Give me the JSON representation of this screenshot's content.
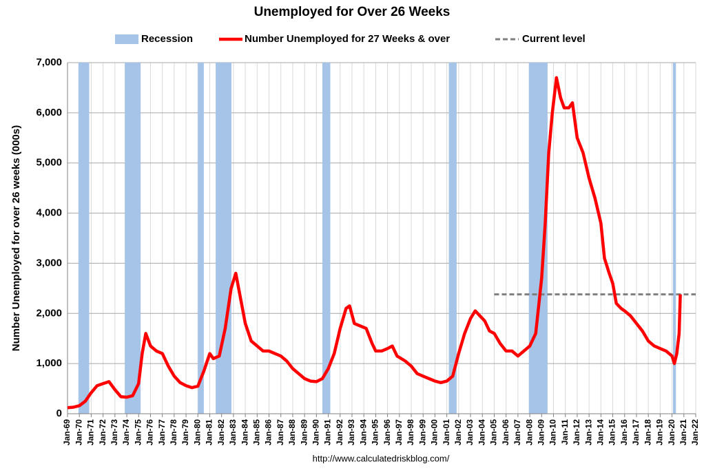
{
  "chart_data": {
    "type": "line",
    "title": "Unemployed for Over 26 Weeks",
    "y_label": "Number Unemployed for over 26 weeks (000s)",
    "source": "http://www.calculatedriskblog.com/",
    "xlim": [
      1969,
      2022
    ],
    "xticks": [
      {
        "value": 1969,
        "label": "Jan-69"
      },
      {
        "value": 1970,
        "label": "Jan-70"
      },
      {
        "value": 1971,
        "label": "Jan-71"
      },
      {
        "value": 1972,
        "label": "Jan-72"
      },
      {
        "value": 1973,
        "label": "Jan-73"
      },
      {
        "value": 1974,
        "label": "Jan-74"
      },
      {
        "value": 1975,
        "label": "Jan-75"
      },
      {
        "value": 1976,
        "label": "Jan-76"
      },
      {
        "value": 1977,
        "label": "Jan-77"
      },
      {
        "value": 1978,
        "label": "Jan-78"
      },
      {
        "value": 1979,
        "label": "Jan-79"
      },
      {
        "value": 1980,
        "label": "Jan-80"
      },
      {
        "value": 1981,
        "label": "Jan-81"
      },
      {
        "value": 1982,
        "label": "Jan-82"
      },
      {
        "value": 1983,
        "label": "Jan-83"
      },
      {
        "value": 1984,
        "label": "Jan-84"
      },
      {
        "value": 1985,
        "label": "Jan-85"
      },
      {
        "value": 1986,
        "label": "Jan-86"
      },
      {
        "value": 1987,
        "label": "Jan-87"
      },
      {
        "value": 1988,
        "label": "Jan-88"
      },
      {
        "value": 1989,
        "label": "Jan-89"
      },
      {
        "value": 1990,
        "label": "Jan-90"
      },
      {
        "value": 1991,
        "label": "Jan-91"
      },
      {
        "value": 1992,
        "label": "Jan-92"
      },
      {
        "value": 1993,
        "label": "Jan-93"
      },
      {
        "value": 1994,
        "label": "Jan-94"
      },
      {
        "value": 1995,
        "label": "Jan-95"
      },
      {
        "value": 1996,
        "label": "Jan-96"
      },
      {
        "value": 1997,
        "label": "Jan-97"
      },
      {
        "value": 1998,
        "label": "Jan-98"
      },
      {
        "value": 1999,
        "label": "Jan-99"
      },
      {
        "value": 2000,
        "label": "Jan-00"
      },
      {
        "value": 2001,
        "label": "Jan-01"
      },
      {
        "value": 2002,
        "label": "Jan-02"
      },
      {
        "value": 2003,
        "label": "Jan-03"
      },
      {
        "value": 2004,
        "label": "Jan-04"
      },
      {
        "value": 2005,
        "label": "Jan-05"
      },
      {
        "value": 2006,
        "label": "Jan-06"
      },
      {
        "value": 2007,
        "label": "Jan-07"
      },
      {
        "value": 2008,
        "label": "Jan-08"
      },
      {
        "value": 2009,
        "label": "Jan-09"
      },
      {
        "value": 2010,
        "label": "Jan-10"
      },
      {
        "value": 2011,
        "label": "Jan-11"
      },
      {
        "value": 2012,
        "label": "Jan-12"
      },
      {
        "value": 2013,
        "label": "Jan-13"
      },
      {
        "value": 2014,
        "label": "Jan-14"
      },
      {
        "value": 2015,
        "label": "Jan-15"
      },
      {
        "value": 2016,
        "label": "Jan-16"
      },
      {
        "value": 2017,
        "label": "Jan-17"
      },
      {
        "value": 2018,
        "label": "Jan-18"
      },
      {
        "value": 2019,
        "label": "Jan-19"
      },
      {
        "value": 2020,
        "label": "Jan-20"
      },
      {
        "value": 2021,
        "label": "Jan-21"
      },
      {
        "value": 2022,
        "label": "Jan-22"
      }
    ],
    "ylim": [
      0,
      7000
    ],
    "yticks": [
      0,
      {
        "value": 1000,
        "label": "1,000"
      },
      {
        "value": 2000,
        "label": "2,000"
      },
      {
        "value": 3000,
        "label": "3,000"
      },
      {
        "value": 4000,
        "label": "4,000"
      },
      {
        "value": 5000,
        "label": "5,000"
      },
      {
        "value": 6000,
        "label": "6,000"
      },
      {
        "value": 7000,
        "label": "7,000"
      }
    ],
    "grid": true,
    "recession": {
      "name": "Recession",
      "color": "#a6c3e8",
      "periods": [
        [
          1969.92,
          1970.83
        ],
        [
          1973.83,
          1975.17
        ],
        [
          1980.0,
          1980.5
        ],
        [
          1981.5,
          1982.83
        ],
        [
          1990.5,
          1991.17
        ],
        [
          2001.17,
          2001.83
        ],
        [
          2007.92,
          2009.5
        ],
        [
          2020.08,
          2020.33
        ]
      ]
    },
    "series": [
      {
        "name": "Number Unemployed for 27 Weeks & over",
        "color": "#ff0000",
        "x": [
          1969.0,
          1969.5,
          1970.0,
          1970.5,
          1971.0,
          1971.5,
          1972.0,
          1972.5,
          1973.0,
          1973.5,
          1974.0,
          1974.5,
          1975.0,
          1975.3,
          1975.6,
          1976.0,
          1976.5,
          1977.0,
          1977.5,
          1978.0,
          1978.5,
          1979.0,
          1979.5,
          1980.0,
          1980.5,
          1981.0,
          1981.3,
          1981.8,
          1982.3,
          1982.8,
          1983.2,
          1983.6,
          1984.0,
          1984.5,
          1985.0,
          1985.5,
          1986.0,
          1986.5,
          1987.0,
          1987.5,
          1988.0,
          1988.5,
          1989.0,
          1989.5,
          1990.0,
          1990.5,
          1991.0,
          1991.5,
          1992.0,
          1992.5,
          1992.8,
          1993.2,
          1993.7,
          1994.2,
          1994.7,
          1995.0,
          1995.5,
          1996.0,
          1996.4,
          1996.8,
          1997.5,
          1998.0,
          1998.5,
          1999.0,
          1999.5,
          2000.0,
          2000.5,
          2001.0,
          2001.5,
          2002.0,
          2002.5,
          2003.0,
          2003.4,
          2003.8,
          2004.2,
          2004.6,
          2005.0,
          2005.5,
          2006.0,
          2006.5,
          2007.0,
          2007.5,
          2008.0,
          2008.5,
          2009.0,
          2009.3,
          2009.6,
          2009.9,
          2010.25,
          2010.6,
          2010.9,
          2011.3,
          2011.6,
          2012.0,
          2012.5,
          2013.0,
          2013.5,
          2014.0,
          2014.3,
          2014.7,
          2015.0,
          2015.3,
          2015.7,
          2016.0,
          2016.5,
          2017.0,
          2017.5,
          2018.0,
          2018.5,
          2019.0,
          2019.5,
          2020.0,
          2020.2,
          2020.4,
          2020.6,
          2020.7
        ],
        "values": [
          120,
          130,
          160,
          250,
          420,
          560,
          600,
          640,
          480,
          340,
          330,
          360,
          600,
          1200,
          1600,
          1350,
          1250,
          1200,
          950,
          750,
          620,
          560,
          520,
          550,
          850,
          1200,
          1100,
          1150,
          1700,
          2500,
          2800,
          2300,
          1800,
          1450,
          1350,
          1250,
          1250,
          1200,
          1150,
          1050,
          900,
          800,
          700,
          650,
          640,
          700,
          900,
          1200,
          1700,
          2100,
          2150,
          1800,
          1750,
          1700,
          1400,
          1250,
          1250,
          1300,
          1350,
          1150,
          1050,
          950,
          800,
          750,
          700,
          650,
          620,
          650,
          750,
          1200,
          1600,
          1900,
          2050,
          1950,
          1850,
          1650,
          1600,
          1400,
          1250,
          1250,
          1150,
          1250,
          1350,
          1600,
          2700,
          3800,
          5200,
          6000,
          6700,
          6300,
          6100,
          6100,
          6200,
          5500,
          5200,
          4700,
          4300,
          3800,
          3100,
          2800,
          2600,
          2200,
          2100,
          2050,
          1950,
          1800,
          1650,
          1450,
          1350,
          1300,
          1250,
          1150,
          1000,
          1200,
          1600,
          2380
        ]
      }
    ],
    "current_level": {
      "name": "Current level",
      "color": "#7f7f7f",
      "value": 2380,
      "x_start": 2005
    }
  }
}
